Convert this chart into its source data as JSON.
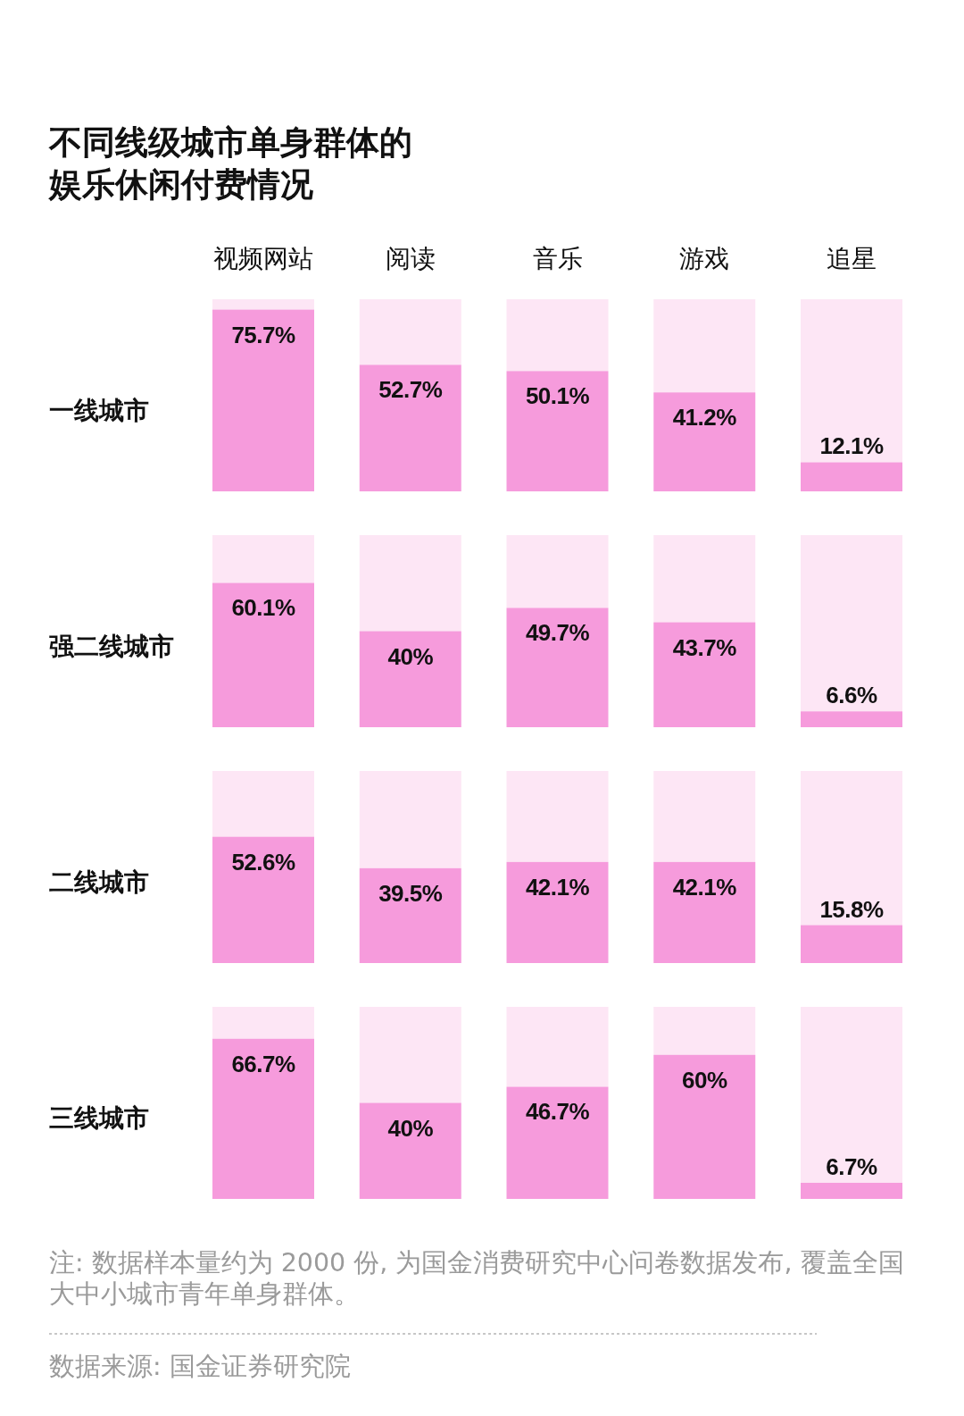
{
  "chart_data": [
    {
      "type": "bar",
      "title": "不同线级城市单身群体的娱乐休闲付费情况",
      "ylabel": "一线城市",
      "categories": [
        "视频网站",
        "阅读",
        "音乐",
        "游戏",
        "追星"
      ],
      "color": "#f69bdc",
      "values": [
        75.7,
        52.7,
        50.1,
        41.2,
        12.1
      ],
      "value_labels": [
        "75.7%",
        "52.7%",
        "50.1%",
        "41.2%",
        "12.1%"
      ],
      "ylim": [
        0,
        80
      ],
      "tick_labels": "x"
    },
    {
      "type": "bar",
      "ylabel": "强二线城市",
      "categories": [
        null,
        null,
        null,
        null,
        null
      ],
      "color": "#f69bdc",
      "values": [
        60.1,
        40,
        49.7,
        43.7,
        6.6
      ],
      "value_labels": [
        "60.1%",
        "40%",
        "49.7%",
        "43.7%",
        "6.6%"
      ],
      "ylim": [
        0,
        80
      ],
      "tick_labels": false
    },
    {
      "type": "bar",
      "ylabel": "二线城市",
      "categories": [
        null,
        null,
        null,
        null,
        null
      ],
      "color": "#f69bdc",
      "values": [
        52.6,
        39.5,
        42.1,
        42.1,
        15.8
      ],
      "value_labels": [
        "52.6%",
        "39.5%",
        "42.1%",
        "42.1%",
        "15.8%"
      ],
      "ylim": [
        0,
        80
      ],
      "tick_labels": false
    },
    {
      "type": "bar",
      "ylabel": "三线城市",
      "categories": [
        null,
        null,
        null,
        null,
        null
      ],
      "color": "#f69bdc",
      "values": [
        66.7,
        40,
        46.7,
        60,
        6.7
      ],
      "value_labels": [
        "66.7%",
        "40%",
        "46.7%",
        "60%",
        "6.7%"
      ],
      "ylim": [
        0,
        80
      ],
      "tick_labels": false,
      "annotations": [
        "注: 数据样本量约为 2000 份, 为国金消费研究中心问卷数据发布, 覆盖全国大中小城市青年单身群体。",
        "数据来源: 国金证券研究院"
      ]
    }
  ]
}
